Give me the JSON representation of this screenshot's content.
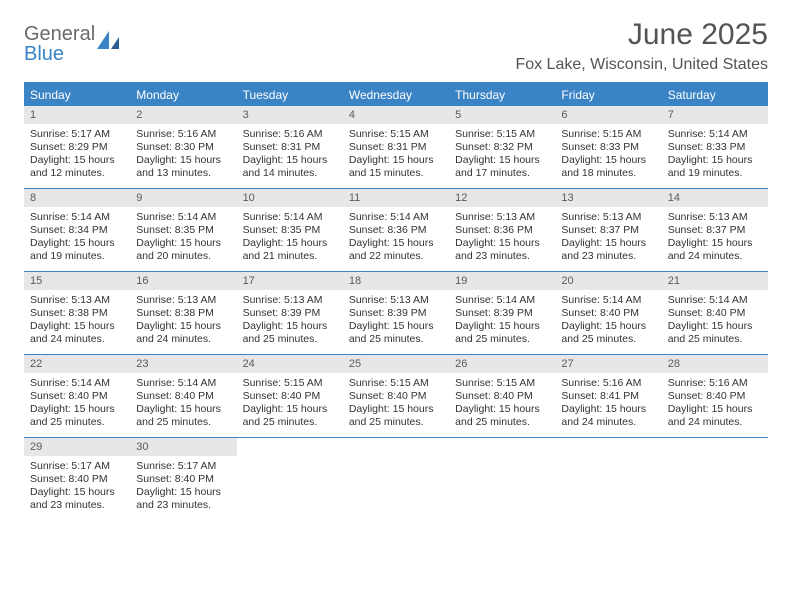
{
  "logo": {
    "top": "General",
    "bottom": "Blue"
  },
  "title": "June 2025",
  "location": "Fox Lake, Wisconsin, United States",
  "header_color": "#3a83c5",
  "day_bg_color": "#e7e7e7",
  "text_color": "#333333",
  "days_of_week": [
    "Sunday",
    "Monday",
    "Tuesday",
    "Wednesday",
    "Thursday",
    "Friday",
    "Saturday"
  ],
  "weeks": [
    [
      {
        "n": "1",
        "sr": "Sunrise: 5:17 AM",
        "ss": "Sunset: 8:29 PM",
        "d1": "Daylight: 15 hours",
        "d2": "and 12 minutes."
      },
      {
        "n": "2",
        "sr": "Sunrise: 5:16 AM",
        "ss": "Sunset: 8:30 PM",
        "d1": "Daylight: 15 hours",
        "d2": "and 13 minutes."
      },
      {
        "n": "3",
        "sr": "Sunrise: 5:16 AM",
        "ss": "Sunset: 8:31 PM",
        "d1": "Daylight: 15 hours",
        "d2": "and 14 minutes."
      },
      {
        "n": "4",
        "sr": "Sunrise: 5:15 AM",
        "ss": "Sunset: 8:31 PM",
        "d1": "Daylight: 15 hours",
        "d2": "and 15 minutes."
      },
      {
        "n": "5",
        "sr": "Sunrise: 5:15 AM",
        "ss": "Sunset: 8:32 PM",
        "d1": "Daylight: 15 hours",
        "d2": "and 17 minutes."
      },
      {
        "n": "6",
        "sr": "Sunrise: 5:15 AM",
        "ss": "Sunset: 8:33 PM",
        "d1": "Daylight: 15 hours",
        "d2": "and 18 minutes."
      },
      {
        "n": "7",
        "sr": "Sunrise: 5:14 AM",
        "ss": "Sunset: 8:33 PM",
        "d1": "Daylight: 15 hours",
        "d2": "and 19 minutes."
      }
    ],
    [
      {
        "n": "8",
        "sr": "Sunrise: 5:14 AM",
        "ss": "Sunset: 8:34 PM",
        "d1": "Daylight: 15 hours",
        "d2": "and 19 minutes."
      },
      {
        "n": "9",
        "sr": "Sunrise: 5:14 AM",
        "ss": "Sunset: 8:35 PM",
        "d1": "Daylight: 15 hours",
        "d2": "and 20 minutes."
      },
      {
        "n": "10",
        "sr": "Sunrise: 5:14 AM",
        "ss": "Sunset: 8:35 PM",
        "d1": "Daylight: 15 hours",
        "d2": "and 21 minutes."
      },
      {
        "n": "11",
        "sr": "Sunrise: 5:14 AM",
        "ss": "Sunset: 8:36 PM",
        "d1": "Daylight: 15 hours",
        "d2": "and 22 minutes."
      },
      {
        "n": "12",
        "sr": "Sunrise: 5:13 AM",
        "ss": "Sunset: 8:36 PM",
        "d1": "Daylight: 15 hours",
        "d2": "and 23 minutes."
      },
      {
        "n": "13",
        "sr": "Sunrise: 5:13 AM",
        "ss": "Sunset: 8:37 PM",
        "d1": "Daylight: 15 hours",
        "d2": "and 23 minutes."
      },
      {
        "n": "14",
        "sr": "Sunrise: 5:13 AM",
        "ss": "Sunset: 8:37 PM",
        "d1": "Daylight: 15 hours",
        "d2": "and 24 minutes."
      }
    ],
    [
      {
        "n": "15",
        "sr": "Sunrise: 5:13 AM",
        "ss": "Sunset: 8:38 PM",
        "d1": "Daylight: 15 hours",
        "d2": "and 24 minutes."
      },
      {
        "n": "16",
        "sr": "Sunrise: 5:13 AM",
        "ss": "Sunset: 8:38 PM",
        "d1": "Daylight: 15 hours",
        "d2": "and 24 minutes."
      },
      {
        "n": "17",
        "sr": "Sunrise: 5:13 AM",
        "ss": "Sunset: 8:39 PM",
        "d1": "Daylight: 15 hours",
        "d2": "and 25 minutes."
      },
      {
        "n": "18",
        "sr": "Sunrise: 5:13 AM",
        "ss": "Sunset: 8:39 PM",
        "d1": "Daylight: 15 hours",
        "d2": "and 25 minutes."
      },
      {
        "n": "19",
        "sr": "Sunrise: 5:14 AM",
        "ss": "Sunset: 8:39 PM",
        "d1": "Daylight: 15 hours",
        "d2": "and 25 minutes."
      },
      {
        "n": "20",
        "sr": "Sunrise: 5:14 AM",
        "ss": "Sunset: 8:40 PM",
        "d1": "Daylight: 15 hours",
        "d2": "and 25 minutes."
      },
      {
        "n": "21",
        "sr": "Sunrise: 5:14 AM",
        "ss": "Sunset: 8:40 PM",
        "d1": "Daylight: 15 hours",
        "d2": "and 25 minutes."
      }
    ],
    [
      {
        "n": "22",
        "sr": "Sunrise: 5:14 AM",
        "ss": "Sunset: 8:40 PM",
        "d1": "Daylight: 15 hours",
        "d2": "and 25 minutes."
      },
      {
        "n": "23",
        "sr": "Sunrise: 5:14 AM",
        "ss": "Sunset: 8:40 PM",
        "d1": "Daylight: 15 hours",
        "d2": "and 25 minutes."
      },
      {
        "n": "24",
        "sr": "Sunrise: 5:15 AM",
        "ss": "Sunset: 8:40 PM",
        "d1": "Daylight: 15 hours",
        "d2": "and 25 minutes."
      },
      {
        "n": "25",
        "sr": "Sunrise: 5:15 AM",
        "ss": "Sunset: 8:40 PM",
        "d1": "Daylight: 15 hours",
        "d2": "and 25 minutes."
      },
      {
        "n": "26",
        "sr": "Sunrise: 5:15 AM",
        "ss": "Sunset: 8:40 PM",
        "d1": "Daylight: 15 hours",
        "d2": "and 25 minutes."
      },
      {
        "n": "27",
        "sr": "Sunrise: 5:16 AM",
        "ss": "Sunset: 8:41 PM",
        "d1": "Daylight: 15 hours",
        "d2": "and 24 minutes."
      },
      {
        "n": "28",
        "sr": "Sunrise: 5:16 AM",
        "ss": "Sunset: 8:40 PM",
        "d1": "Daylight: 15 hours",
        "d2": "and 24 minutes."
      }
    ],
    [
      {
        "n": "29",
        "sr": "Sunrise: 5:17 AM",
        "ss": "Sunset: 8:40 PM",
        "d1": "Daylight: 15 hours",
        "d2": "and 23 minutes."
      },
      {
        "n": "30",
        "sr": "Sunrise: 5:17 AM",
        "ss": "Sunset: 8:40 PM",
        "d1": "Daylight: 15 hours",
        "d2": "and 23 minutes."
      },
      null,
      null,
      null,
      null,
      null
    ]
  ]
}
